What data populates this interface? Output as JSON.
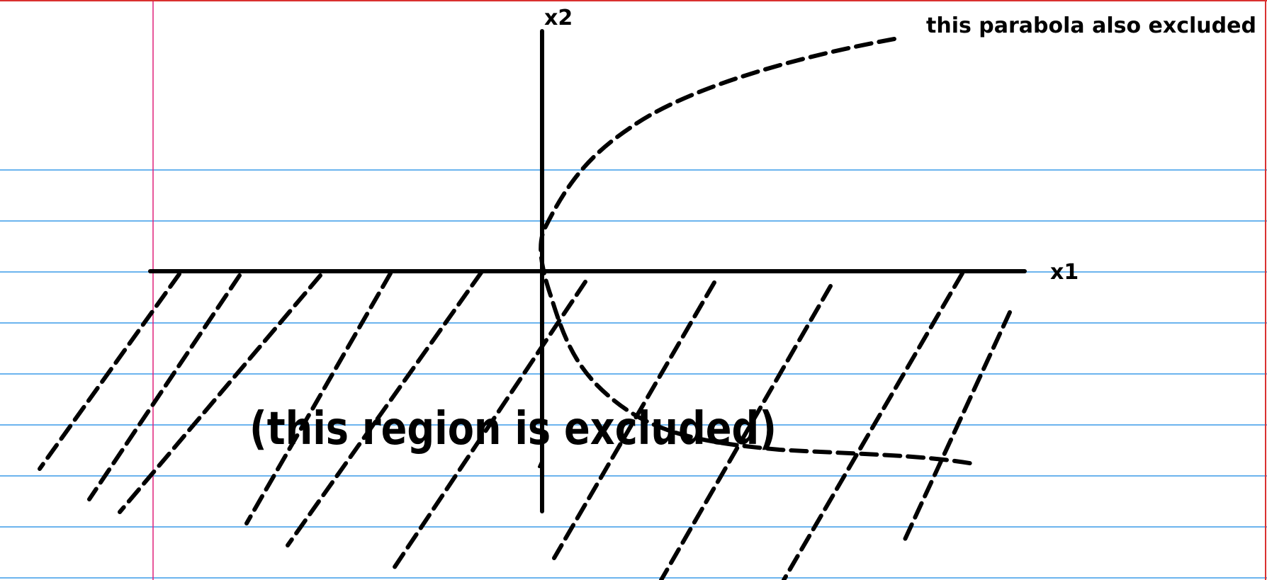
{
  "paper": {
    "background": "#ffffff",
    "rule_color": "#3c9be8",
    "margin_color": "#e0207a",
    "border_color": "#d9302f"
  },
  "ink_color": "#000000",
  "axes": {
    "x_label": "x1",
    "y_label": "x2"
  },
  "annotations": {
    "parabola_note": "this parabola also excluded",
    "region_note": "(this region is excluded)"
  }
}
